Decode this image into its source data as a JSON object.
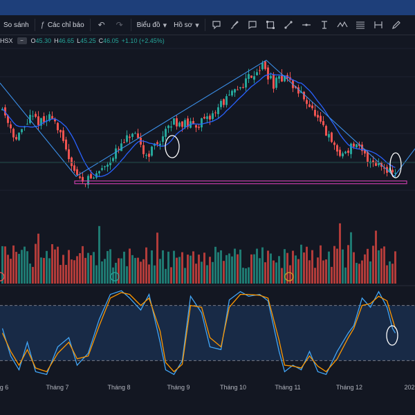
{
  "toolbar": {
    "compare_label": "So sánh",
    "indicators_label": "Các chỉ báo",
    "chart_label": "Biểu đồ",
    "profile_label": "Hồ sơ"
  },
  "legend": {
    "symbol": "HSX",
    "open_label": "O",
    "open": "45.30",
    "high_label": "H",
    "high": "46.65",
    "low_label": "L",
    "low": "45.25",
    "close_label": "C",
    "close": "46.05",
    "change": "+1.10 (+2.45%)"
  },
  "colors": {
    "up": "#26a69a",
    "down": "#ef5350",
    "ma_line": "#2962ff",
    "stoch_k": "#42a5f5",
    "stoch_d": "#ff9800",
    "support": "#c33ca6",
    "background": "#131722",
    "topbar": "#1e3f7a"
  },
  "chart_data": [
    {
      "type": "candlestick",
      "series": [
        {
          "name": "Price"
        },
        {
          "name": "Moving average"
        }
      ],
      "x_axis_labels": [
        "g 6",
        "Tháng 7",
        "Tháng 8",
        "Tháng 9",
        "Tháng 10",
        "Tháng 11",
        "Tháng 12",
        "202"
      ],
      "waypoints": [
        [
          0,
          44.2
        ],
        [
          5,
          42.2
        ],
        [
          10,
          43.6
        ],
        [
          15,
          43.3
        ],
        [
          18,
          43.8
        ],
        [
          23,
          41.5
        ],
        [
          28,
          39.6
        ],
        [
          33,
          39.8
        ],
        [
          40,
          41.2
        ],
        [
          47,
          42.6
        ],
        [
          52,
          41.2
        ],
        [
          58,
          42.4
        ],
        [
          62,
          43.4
        ],
        [
          68,
          43.1
        ],
        [
          74,
          43.4
        ],
        [
          79,
          44.5
        ],
        [
          84,
          45.2
        ],
        [
          89,
          46.2
        ],
        [
          94,
          46.9
        ],
        [
          98,
          45.7
        ],
        [
          102,
          46.3
        ],
        [
          106,
          45.4
        ],
        [
          110,
          44.7
        ],
        [
          114,
          43.4
        ],
        [
          118,
          42.3
        ],
        [
          122,
          41.2
        ],
        [
          127,
          41.9
        ],
        [
          132,
          41.0
        ],
        [
          138,
          40.5
        ],
        [
          142,
          40.1
        ]
      ],
      "support_level": 39.5,
      "ylim": [
        39,
        48
      ],
      "last": {
        "open": 45.3,
        "high": 46.65,
        "low": 45.25,
        "close": 46.05
      }
    },
    {
      "type": "bar",
      "series": [
        {
          "name": "Volume"
        }
      ],
      "ylim": [
        0,
        100
      ]
    },
    {
      "type": "line",
      "series": [
        {
          "name": "%K",
          "waypoints": [
            [
              0,
              55
            ],
            [
              3,
              25
            ],
            [
              6,
              10
            ],
            [
              9,
              40
            ],
            [
              12,
              8
            ],
            [
              16,
              5
            ],
            [
              20,
              35
            ],
            [
              24,
              45
            ],
            [
              27,
              15
            ],
            [
              31,
              28
            ],
            [
              35,
              65
            ],
            [
              39,
              92
            ],
            [
              43,
              96
            ],
            [
              46,
              88
            ],
            [
              50,
              75
            ],
            [
              53,
              92
            ],
            [
              57,
              40
            ],
            [
              59,
              10
            ],
            [
              62,
              5
            ],
            [
              65,
              20
            ],
            [
              68,
              90
            ],
            [
              72,
              72
            ],
            [
              75,
              35
            ],
            [
              79,
              32
            ],
            [
              82,
              86
            ],
            [
              86,
              95
            ],
            [
              89,
              90
            ],
            [
              93,
              92
            ],
            [
              96,
              85
            ],
            [
              100,
              30
            ],
            [
              102,
              8
            ],
            [
              105,
              15
            ],
            [
              108,
              10
            ],
            [
              111,
              30
            ],
            [
              114,
              8
            ],
            [
              117,
              5
            ],
            [
              121,
              30
            ],
            [
              125,
              50
            ],
            [
              127,
              58
            ],
            [
              130,
              88
            ],
            [
              133,
              78
            ],
            [
              136,
              95
            ],
            [
              139,
              78
            ],
            [
              141,
              55
            ],
            [
              142,
              50
            ]
          ]
        },
        {
          "name": "%D",
          "waypoints": [
            [
              0,
              50
            ],
            [
              3,
              30
            ],
            [
              6,
              15
            ],
            [
              9,
              32
            ],
            [
              12,
              12
            ],
            [
              16,
              8
            ],
            [
              20,
              28
            ],
            [
              24,
              40
            ],
            [
              27,
              22
            ],
            [
              31,
              25
            ],
            [
              35,
              58
            ],
            [
              39,
              88
            ],
            [
              43,
              94
            ],
            [
              46,
              92
            ],
            [
              50,
              80
            ],
            [
              53,
              88
            ],
            [
              57,
              52
            ],
            [
              59,
              18
            ],
            [
              62,
              8
            ],
            [
              65,
              16
            ],
            [
              68,
              80
            ],
            [
              72,
              78
            ],
            [
              75,
              45
            ],
            [
              79,
              35
            ],
            [
              82,
              78
            ],
            [
              86,
              92
            ],
            [
              89,
              92
            ],
            [
              93,
              91
            ],
            [
              96,
              88
            ],
            [
              100,
              42
            ],
            [
              102,
              15
            ],
            [
              105,
              14
            ],
            [
              108,
              12
            ],
            [
              111,
              25
            ],
            [
              114,
              14
            ],
            [
              117,
              8
            ],
            [
              121,
              22
            ],
            [
              125,
              45
            ],
            [
              127,
              55
            ],
            [
              130,
              80
            ],
            [
              133,
              82
            ],
            [
              136,
              90
            ],
            [
              139,
              85
            ],
            [
              141,
              65
            ],
            [
              142,
              55
            ]
          ]
        }
      ],
      "levels": [
        80,
        20
      ],
      "ylim": [
        0,
        100
      ]
    }
  ]
}
